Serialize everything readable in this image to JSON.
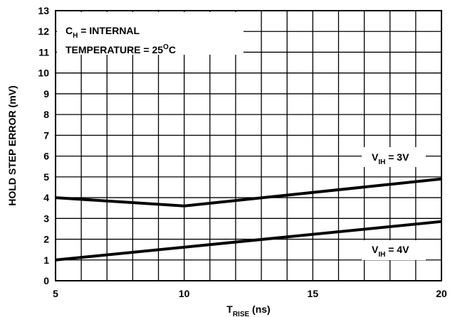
{
  "chart_data": {
    "type": "line",
    "xlabel": {
      "main": "T",
      "sub": "RISE",
      "suffix": " (ns)"
    },
    "ylabel": "HOLD STEP ERROR (mV)",
    "xlim": [
      5,
      20
    ],
    "ylim": [
      0,
      13
    ],
    "x_ticks": [
      5,
      10,
      15,
      20
    ],
    "y_ticks": [
      0,
      1,
      2,
      3,
      4,
      5,
      6,
      7,
      8,
      9,
      10,
      11,
      12,
      13
    ],
    "grid": true,
    "grid_x_step": 1,
    "grid_y_step": 1,
    "annotation": {
      "line1": {
        "main": "C",
        "sub": "H",
        "suffix": " = INTERNAL"
      },
      "line2": {
        "main": "TEMPERATURE = 25",
        "sup": "O",
        "suffix": "C"
      }
    },
    "series": [
      {
        "label": {
          "main": "V",
          "sub": "IH",
          "suffix": " = 3V"
        },
        "x": [
          5,
          10,
          20
        ],
        "y": [
          4.0,
          3.6,
          4.9
        ]
      },
      {
        "label": {
          "main": "V",
          "sub": "IH",
          "suffix": " = 4V"
        },
        "x": [
          5,
          20
        ],
        "y": [
          1.0,
          2.85
        ]
      }
    ],
    "line_color": "#000000"
  }
}
